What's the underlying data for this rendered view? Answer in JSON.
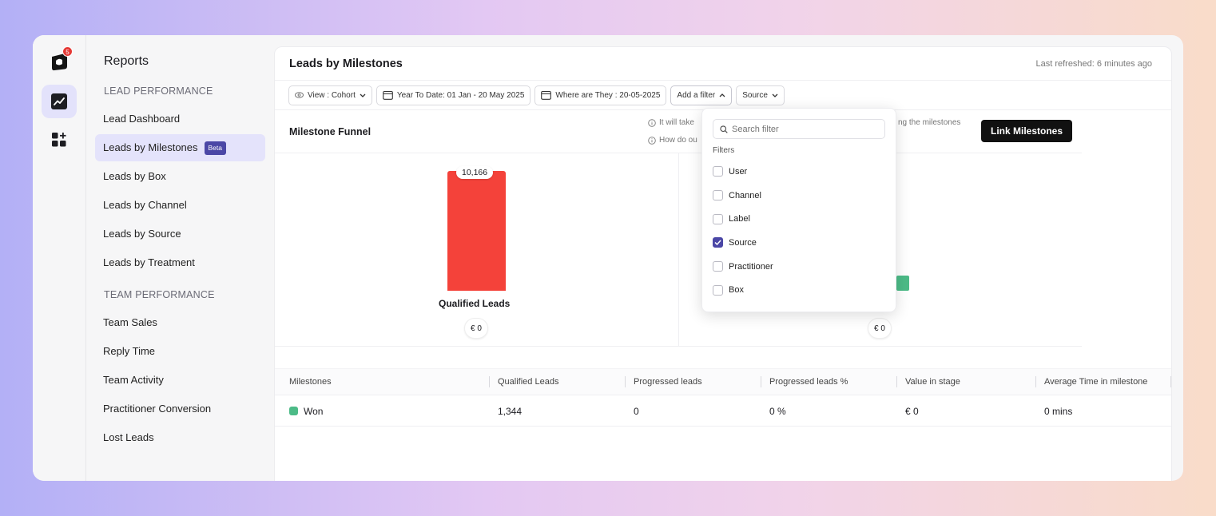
{
  "app": {
    "notification_count": "5"
  },
  "nav": {
    "title": "Reports",
    "sections": [
      {
        "label": "LEAD PERFORMANCE",
        "items": [
          "Lead Dashboard",
          "Leads by Milestones",
          "Leads by Box",
          "Leads by Channel",
          "Leads by Source",
          "Leads by Treatment"
        ]
      },
      {
        "label": "TEAM PERFORMANCE",
        "items": [
          "Team Sales",
          "Reply Time",
          "Team Activity",
          "Practitioner Conversion",
          "Lost Leads"
        ]
      }
    ],
    "active_item": "Leads by Milestones",
    "beta_badge": "Beta"
  },
  "header": {
    "title": "Leads by Milestones",
    "last_refreshed": "Last refreshed: 6 minutes ago"
  },
  "filters": {
    "view": "View : Cohort",
    "date_range": "Year To Date: 01 Jan - 20 May 2025",
    "where_are_they": "Where are They : 20-05-2025",
    "add_filter": "Add a filter",
    "source": "Source"
  },
  "funnel": {
    "title": "Milestone Funnel",
    "hint_1": "It will take",
    "hint_2": "How do ou",
    "hint_3": "ng the milestones",
    "link_button": "Link Milestones",
    "stages": [
      {
        "name": "Qualified Leads",
        "count": "10,166",
        "value": "€ 0",
        "color": "#f4423a"
      },
      {
        "name": "",
        "count": "",
        "value": "€ 0",
        "color": "#4cbb87"
      }
    ]
  },
  "dropdown": {
    "search_placeholder": "Search filter",
    "section_label": "Filters",
    "options": [
      {
        "label": "User",
        "checked": false
      },
      {
        "label": "Channel",
        "checked": false
      },
      {
        "label": "Label",
        "checked": false
      },
      {
        "label": "Source",
        "checked": true
      },
      {
        "label": "Practitioner",
        "checked": false
      },
      {
        "label": "Box",
        "checked": false
      }
    ]
  },
  "table": {
    "columns": [
      "Milestones",
      "Qualified Leads",
      "Progressed leads",
      "Progressed leads %",
      "Value in stage",
      "Average Time in milestone"
    ],
    "rows": [
      {
        "milestone": "Won",
        "qualified": "1,344",
        "progressed": "0",
        "progressed_pct": "0 %",
        "value": "€ 0",
        "avg_time": "0 mins"
      }
    ]
  }
}
